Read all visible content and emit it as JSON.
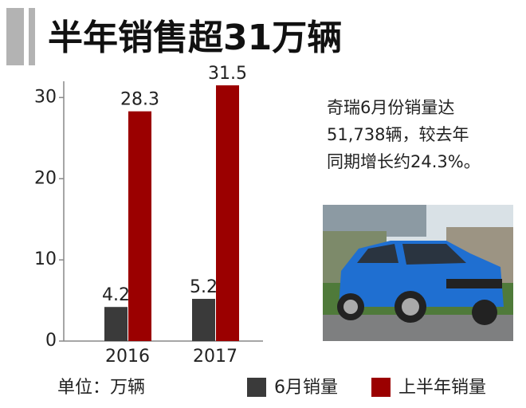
{
  "chart_data": {
    "type": "bar",
    "title": "半年销售超31万辆",
    "categories": [
      "2016",
      "2017"
    ],
    "series": [
      {
        "name": "6月销量",
        "color": "#3a3a3a",
        "values": [
          4.2,
          5.2
        ]
      },
      {
        "name": "上半年销量",
        "color": "#9b0000",
        "values": [
          28.3,
          31.5
        ]
      }
    ],
    "ylim": [
      0,
      32
    ],
    "yticks": [
      0,
      10,
      20,
      30
    ],
    "unit_label": "单位：万辆",
    "annotation": [
      "奇瑞6月份销量达",
      "51,738辆，较去年",
      "同期增长约24.3%。"
    ],
    "legend": "bottom"
  }
}
